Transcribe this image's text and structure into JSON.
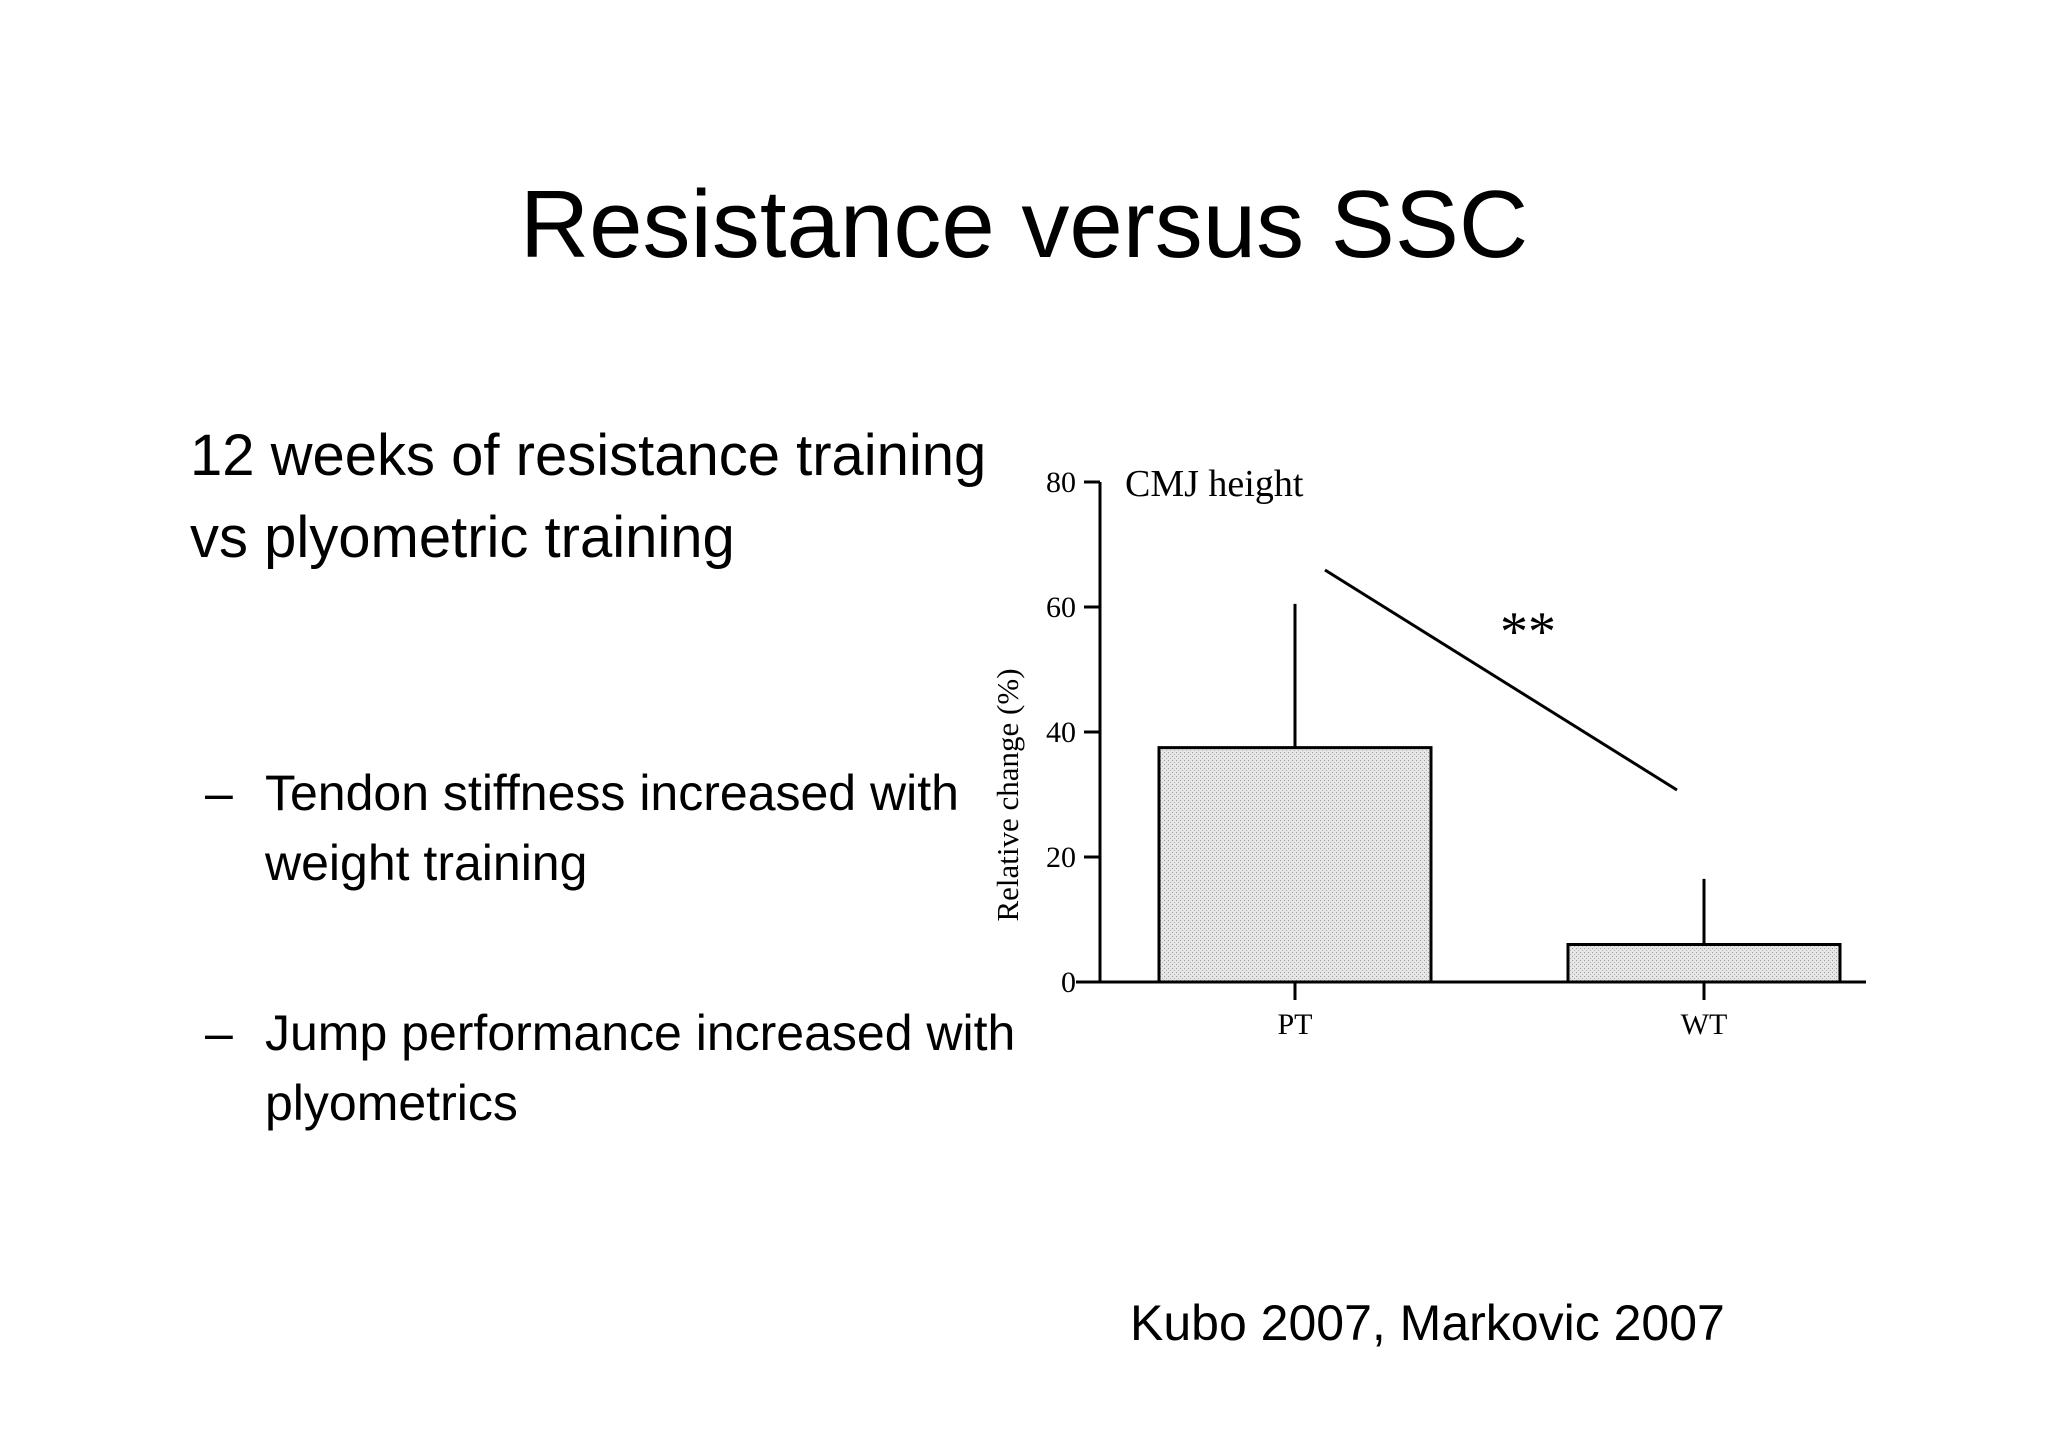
{
  "slide": {
    "title": "Resistance versus SSC",
    "intro": "12 weeks of resistance training vs plyometric training",
    "bullets": [
      {
        "dash": "–",
        "text": "Tendon stiffness increased with weight training"
      },
      {
        "dash": "–",
        "text": "Jump performance increased with plyometrics"
      }
    ],
    "citation": "Kubo 2007, Markovic 2007"
  },
  "chart_data": {
    "type": "bar",
    "title": "CMJ height",
    "xlabel": "",
    "ylabel": "Relative change (%)",
    "categories": [
      "PT",
      "WT"
    ],
    "values": [
      37.5,
      6
    ],
    "error_upper": [
      60.5,
      16.5
    ],
    "ylim": [
      0,
      80
    ],
    "yticks": [
      0,
      20,
      40,
      60,
      80
    ],
    "significance": "**",
    "grid": false,
    "bar_color": "#e2e2e2"
  }
}
